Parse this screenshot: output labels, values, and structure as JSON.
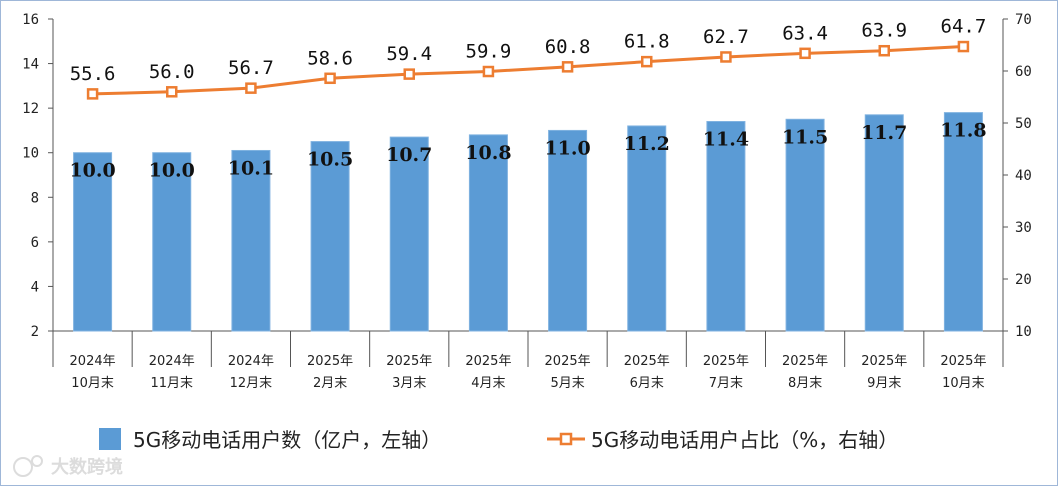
{
  "chart_data": {
    "type": "bar+line",
    "categories": [
      [
        "2024年",
        "10月末"
      ],
      [
        "2024年",
        "11月末"
      ],
      [
        "2024年",
        "12月末"
      ],
      [
        "2025年",
        "2月末"
      ],
      [
        "2025年",
        "3月末"
      ],
      [
        "2025年",
        "4月末"
      ],
      [
        "2025年",
        "5月末"
      ],
      [
        "2025年",
        "6月末"
      ],
      [
        "2025年",
        "7月末"
      ],
      [
        "2025年",
        "8月末"
      ],
      [
        "2025年",
        "9月末"
      ],
      [
        "2025年",
        "10月末"
      ]
    ],
    "series": [
      {
        "name": "5G移动电话用户数（亿户，左轴）",
        "type": "bar",
        "axis": "left",
        "color": "#5b9bd5",
        "values": [
          10.0,
          10.0,
          10.1,
          10.5,
          10.7,
          10.8,
          11.0,
          11.2,
          11.4,
          11.5,
          11.7,
          11.8
        ],
        "labels": [
          "10.0",
          "10.0",
          "10.1",
          "10.5",
          "10.7",
          "10.8",
          "11.0",
          "11.2",
          "11.4",
          "11.5",
          "11.7",
          "11.8"
        ]
      },
      {
        "name": "5G移动电话用户占比（%，右轴）",
        "type": "line",
        "axis": "right",
        "color": "#ed7d31",
        "values": [
          55.6,
          56.0,
          56.7,
          58.6,
          59.4,
          59.9,
          60.8,
          61.8,
          62.7,
          63.4,
          63.9,
          64.7
        ],
        "labels": [
          "55.6",
          "56.0",
          "56.7",
          "58.6",
          "59.4",
          "59.9",
          "60.8",
          "61.8",
          "62.7",
          "63.4",
          "63.9",
          "64.7"
        ]
      }
    ],
    "y_left": {
      "min": 2,
      "max": 16,
      "ticks": [
        "2",
        "4",
        "6",
        "8",
        "10",
        "12",
        "14",
        "16"
      ]
    },
    "y_right": {
      "min": 10,
      "max": 70,
      "ticks": [
        "10",
        "20",
        "30",
        "40",
        "50",
        "60",
        "70"
      ]
    },
    "legend_position": "bottom-center",
    "grid": false
  },
  "watermark": {
    "text": "大数跨境"
  },
  "colors": {
    "frame_border": "#9fb7d8",
    "axis": "#555555"
  }
}
